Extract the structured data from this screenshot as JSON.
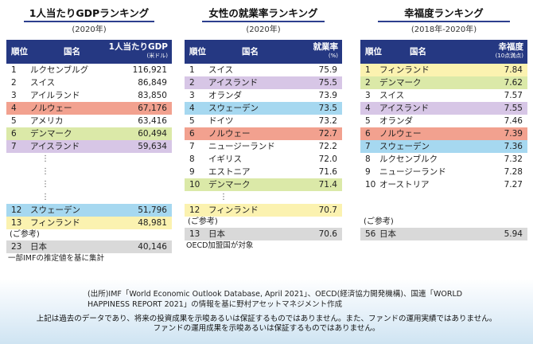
{
  "panels": [
    {
      "title": "1人当たりGDPランキング",
      "year": "(2020年)",
      "headers": {
        "rank": "順位",
        "country": "国名",
        "value": "1人当たりGDP",
        "unit": "(米ドル)"
      },
      "top_rows": [
        {
          "rank": "1",
          "country": "ルクセンブルグ",
          "value": "116,921",
          "color": ""
        },
        {
          "rank": "2",
          "country": "スイス",
          "value": "86,849",
          "color": ""
        },
        {
          "rank": "3",
          "country": "アイルランド",
          "value": "83,850",
          "color": ""
        },
        {
          "rank": "4",
          "country": "ノルウェー",
          "value": "67,176",
          "color": "#f2a18f"
        },
        {
          "rank": "5",
          "country": "アメリカ",
          "value": "63,416",
          "color": ""
        },
        {
          "rank": "6",
          "country": "デンマーク",
          "value": "60,494",
          "color": "#dbe9a8"
        },
        {
          "rank": "7",
          "country": "アイスランド",
          "value": "59,634",
          "color": "#d7c6e6"
        }
      ],
      "ellipsis": "⋮",
      "bottom_rows": [
        {
          "rank": "12",
          "country": "スウェーデン",
          "value": "51,796",
          "color": "#a6d8f0"
        },
        {
          "rank": "13",
          "country": "フィンランド",
          "value": "48,981",
          "color": "#fbf2b0"
        }
      ],
      "ref_label": "(ご参考)",
      "ref_row": {
        "rank": "23",
        "country": "日本",
        "value": "40,146",
        "color": "#d9d9d9"
      },
      "note": "一部IMFの推定値を基に集計"
    },
    {
      "title": "女性の就業率ランキング",
      "year": "(2020年)",
      "headers": {
        "rank": "順位",
        "country": "国名",
        "value": "就業率",
        "unit": "(%)"
      },
      "top_rows": [
        {
          "rank": "1",
          "country": "スイス",
          "value": "75.9",
          "color": ""
        },
        {
          "rank": "2",
          "country": "アイスランド",
          "value": "75.5",
          "color": "#d7c6e6"
        },
        {
          "rank": "3",
          "country": "オランダ",
          "value": "73.9",
          "color": ""
        },
        {
          "rank": "4",
          "country": "スウェーデン",
          "value": "73.5",
          "color": "#a6d8f0"
        },
        {
          "rank": "5",
          "country": "ドイツ",
          "value": "73.2",
          "color": ""
        },
        {
          "rank": "6",
          "country": "ノルウェー",
          "value": "72.7",
          "color": "#f2a18f"
        },
        {
          "rank": "7",
          "country": "ニュージーランド",
          "value": "72.2",
          "color": ""
        },
        {
          "rank": "8",
          "country": "イギリス",
          "value": "72.0",
          "color": ""
        },
        {
          "rank": "9",
          "country": "エストニア",
          "value": "71.6",
          "color": ""
        },
        {
          "rank": "10",
          "country": "デンマーク",
          "value": "71.4",
          "color": "#dbe9a8"
        }
      ],
      "ellipsis": "⋮",
      "bottom_rows": [
        {
          "rank": "12",
          "country": "フィンランド",
          "value": "70.7",
          "color": "#fbf2b0"
        }
      ],
      "ref_label": "(ご参考)",
      "ref_row": {
        "rank": "13",
        "country": "日本",
        "value": "70.6",
        "color": "#d9d9d9"
      },
      "note": "OECD加盟国が対象"
    },
    {
      "title": "幸福度ランキング",
      "year": "(2018年-2020年)",
      "headers": {
        "rank": "順位",
        "country": "国名",
        "value": "幸福度",
        "unit": "(10点満点)"
      },
      "top_rows": [
        {
          "rank": "1",
          "country": "フィンランド",
          "value": "7.84",
          "color": "#fbf2b0"
        },
        {
          "rank": "2",
          "country": "デンマーク",
          "value": "7.62",
          "color": "#dbe9a8"
        },
        {
          "rank": "3",
          "country": "スイス",
          "value": "7.57",
          "color": ""
        },
        {
          "rank": "4",
          "country": "アイスランド",
          "value": "7.55",
          "color": "#d7c6e6"
        },
        {
          "rank": "5",
          "country": "オランダ",
          "value": "7.46",
          "color": ""
        },
        {
          "rank": "6",
          "country": "ノルウェー",
          "value": "7.39",
          "color": "#f2a18f"
        },
        {
          "rank": "7",
          "country": "スウェーデン",
          "value": "7.36",
          "color": "#a6d8f0"
        },
        {
          "rank": "8",
          "country": "ルクセンブルク",
          "value": "7.32",
          "color": ""
        },
        {
          "rank": "9",
          "country": "ニュージーランド",
          "value": "7.28",
          "color": ""
        },
        {
          "rank": "10",
          "country": "オーストリア",
          "value": "7.27",
          "color": ""
        }
      ],
      "ellipsis": "",
      "bottom_rows": [],
      "ref_label": "(ご参考)",
      "ref_row": {
        "rank": "56",
        "country": "日本",
        "value": "5.94",
        "color": "#d9d9d9"
      },
      "note": ""
    }
  ],
  "source": "(出所)IMF「World Economic Outlook Database, April 2021」、OECD(経済協力開発機構)、国連「WORLD HAPPINESS REPORT 2021」の情報を基に野村アセットマネジメント作成",
  "disclaimer_line1": "上記は過去のデータであり、将来の投資成果を示唆あるいは保証するものではありません。また、ファンドの運用実績ではありません。",
  "disclaimer_line2": "ファンドの運用成果を示唆あるいは保証するものではありません。"
}
